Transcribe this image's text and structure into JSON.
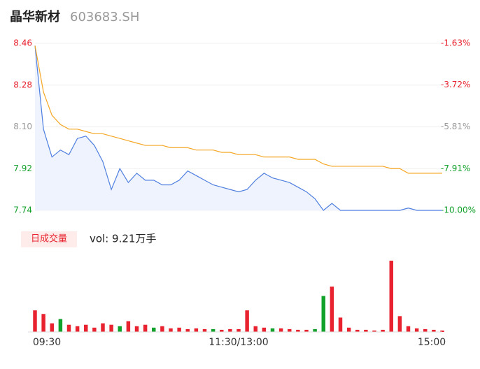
{
  "chart_data": [
    {
      "type": "line",
      "title": "晶华新材",
      "subtitle": "603683.SH",
      "categories": [
        "09:30",
        null,
        null,
        null,
        null,
        null,
        null,
        null,
        null,
        null,
        null,
        null,
        null,
        null,
        null,
        null,
        null,
        null,
        null,
        null,
        null,
        null,
        null,
        null,
        "11:30/13:00",
        null,
        null,
        null,
        null,
        null,
        null,
        null,
        null,
        null,
        null,
        null,
        null,
        null,
        null,
        null,
        null,
        null,
        null,
        null,
        null,
        null,
        null,
        null,
        "15:00"
      ],
      "series": [
        {
          "color": "#4f7fe0",
          "fill": "#eef3fd",
          "values": [
            8.45,
            8.09,
            7.97,
            8.0,
            7.98,
            8.05,
            8.06,
            8.02,
            7.95,
            7.83,
            7.92,
            7.86,
            7.9,
            7.87,
            7.87,
            7.85,
            7.85,
            7.87,
            7.91,
            7.89,
            7.87,
            7.85,
            7.84,
            7.83,
            7.82,
            7.83,
            7.87,
            7.9,
            7.88,
            7.87,
            7.86,
            7.84,
            7.82,
            7.79,
            7.74,
            7.77,
            7.74,
            7.74,
            7.74,
            7.74,
            7.74,
            7.74,
            7.74,
            7.74,
            7.75,
            7.74,
            7.74,
            7.74,
            7.74
          ]
        },
        {
          "color": "#f5a623",
          "values": [
            8.45,
            8.25,
            8.15,
            8.11,
            8.09,
            8.09,
            8.08,
            8.07,
            8.07,
            8.06,
            8.05,
            8.04,
            8.03,
            8.02,
            8.02,
            8.02,
            8.01,
            8.01,
            8.01,
            8.0,
            8.0,
            8.0,
            7.99,
            7.99,
            7.98,
            7.98,
            7.98,
            7.97,
            7.97,
            7.97,
            7.97,
            7.96,
            7.96,
            7.96,
            7.94,
            7.93,
            7.93,
            7.93,
            7.93,
            7.93,
            7.93,
            7.93,
            7.92,
            7.92,
            7.9,
            7.9,
            7.9,
            7.9,
            7.9
          ]
        }
      ],
      "ylim": [
        7.74,
        8.46
      ],
      "yticks": [
        8.46,
        8.28,
        {
          "value": 8.1,
          "label": "8.10"
        },
        7.92,
        7.74
      ],
      "ytick_colors": [
        "#e8222e",
        "#e8222e",
        "#999999",
        "#12a12a",
        "#12a12a"
      ],
      "y2lim": [
        -10.0,
        -1.63
      ],
      "y2ticks": [
        {
          "value": -1.63,
          "label": "-1.63%"
        },
        {
          "value": -3.72,
          "label": "-3.72%"
        },
        {
          "value": -5.81,
          "label": "-5.81%"
        },
        {
          "value": -7.91,
          "label": "-7.91%"
        },
        {
          "value": -10.0,
          "label": "-10.00%"
        }
      ],
      "grid": true
    },
    {
      "type": "bar",
      "title": "日成交量",
      "subtitle": "vol: 9.21万手",
      "values": [
        3000,
        2500,
        1200,
        1800,
        1000,
        800,
        1000,
        600,
        1200,
        1000,
        800,
        1500,
        800,
        1000,
        600,
        800,
        500,
        600,
        400,
        500,
        400,
        400,
        300,
        400,
        400,
        3000,
        800,
        600,
        500,
        500,
        400,
        300,
        300,
        400,
        5000,
        6300,
        2000,
        600,
        300,
        300,
        200,
        300,
        9900,
        2200,
        800,
        500,
        400,
        300,
        200
      ],
      "colors": [
        "#e8222e",
        "#e8222e",
        "#e8222e",
        "#12a12a",
        "#e8222e",
        "#e8222e",
        "#e8222e",
        "#e8222e",
        "#e8222e",
        "#e8222e",
        "#12a12a",
        "#e8222e",
        "#e8222e",
        "#e8222e",
        "#12a12a",
        "#e8222e",
        "#e8222e",
        "#e8222e",
        "#e8222e",
        "#e8222e",
        "#e8222e",
        "#12a12a",
        "#e8222e",
        "#e8222e",
        "#e8222e",
        "#e8222e",
        "#e8222e",
        "#e8222e",
        "#12a12a",
        "#e8222e",
        "#e8222e",
        "#e8222e",
        "#e8222e",
        "#12a12a",
        "#12a12a",
        "#e8222e",
        "#e8222e",
        "#e8222e",
        "#e8222e",
        "#e8222e",
        "#e8222e",
        "#e8222e",
        "#e8222e",
        "#e8222e",
        "#e8222e",
        "#e8222e",
        "#e8222e",
        "#e8222e",
        "#e8222e"
      ],
      "ylim": [
        0,
        10000
      ]
    }
  ]
}
